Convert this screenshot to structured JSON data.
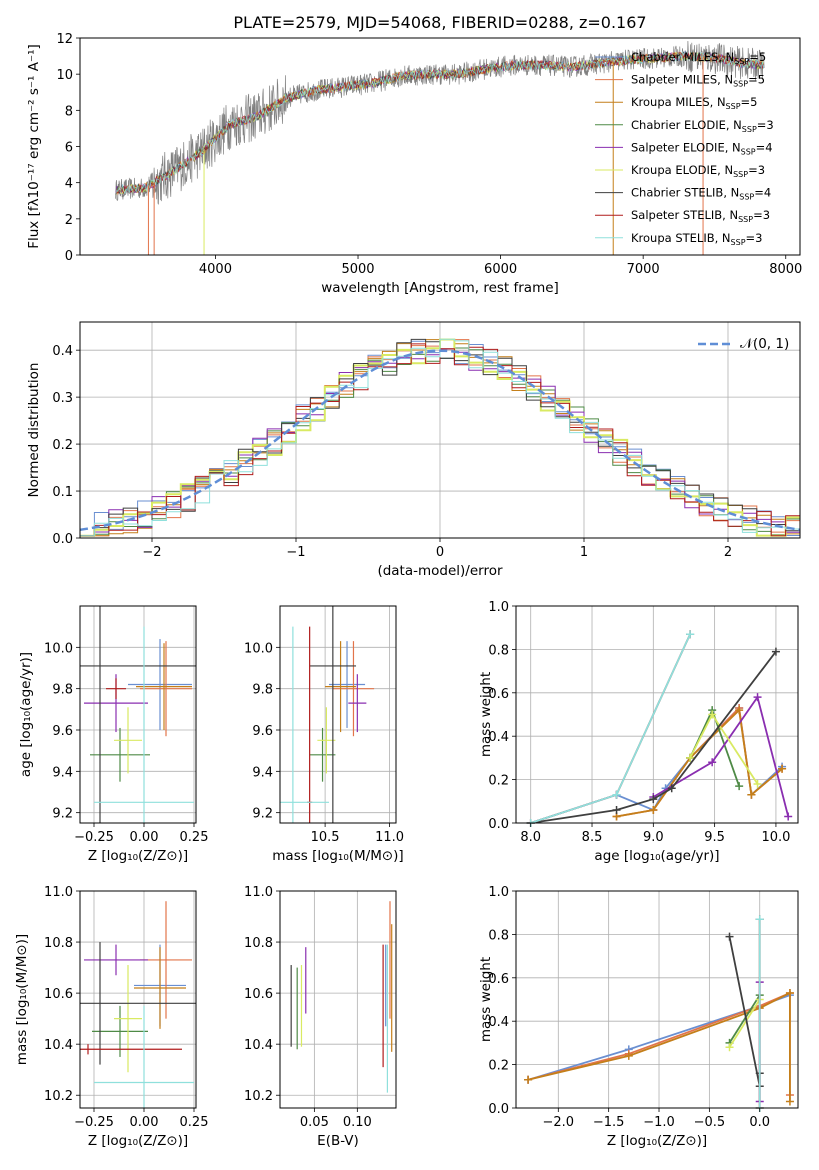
{
  "figure": {
    "title": "PLATE=2579, MJD=54068, FIBERID=0288, z=0.167"
  },
  "colors": {
    "spectrum_data": "#808080",
    "series": {
      "Chabrier MILES": "#6a8fd1",
      "Salpeter MILES": "#e2744a",
      "Kroupa MILES": "#c47f1a",
      "Chabrier ELODIE": "#4e8a46",
      "Salpeter ELODIE": "#8a2eb0",
      "Kroupa ELODIE": "#d9ea62",
      "Chabrier STELIB": "#3f3f3f",
      "Salpeter STELIB": "#b01c1c",
      "Kroupa STELIB": "#8fe0dc"
    },
    "normal_curve": "#5f8ed6",
    "grid": "#b0b0b0"
  },
  "chart_data": [
    {
      "id": "spectrum",
      "type": "line",
      "title": "PLATE=2579, MJD=54068, FIBERID=0288, z=0.167",
      "xlabel": "wavelength [Angstrom, rest frame]",
      "ylabel": "Flux [fλ10⁻¹⁷ erg cm⁻² s⁻¹ A⁻¹]",
      "xlim": [
        3050,
        8100
      ],
      "ylim": [
        0,
        12
      ],
      "xticks": [
        4000,
        5000,
        6000,
        7000,
        8000
      ],
      "yticks": [
        0,
        2,
        4,
        6,
        8,
        10,
        12
      ],
      "grid": false,
      "legend_position": "right",
      "continuum": {
        "x": [
          3300,
          3500,
          3700,
          3900,
          4100,
          4300,
          4500,
          4700,
          4900,
          5100,
          5300,
          5500,
          5700,
          5900,
          6100,
          6300,
          6500,
          6700,
          6900,
          7100,
          7300,
          7500,
          7700,
          7850
        ],
        "y": [
          3.6,
          3.7,
          4.6,
          5.7,
          7.2,
          7.7,
          8.7,
          9.1,
          9.3,
          9.5,
          9.9,
          10.0,
          10.0,
          10.3,
          10.5,
          10.5,
          10.4,
          10.6,
          10.8,
          10.9,
          11.0,
          10.9,
          10.6,
          10.5
        ]
      },
      "series": [
        {
          "name": "Chabrier MILES, N_SSP=5"
        },
        {
          "name": "Salpeter MILES, N_SSP=5"
        },
        {
          "name": "Kroupa MILES, N_SSP=5"
        },
        {
          "name": "Chabrier ELODIE, N_SSP=3"
        },
        {
          "name": "Salpeter ELODIE, N_SSP=4"
        },
        {
          "name": "Kroupa ELODIE, N_SSP=3"
        },
        {
          "name": "Chabrier STELIB, N_SSP=4"
        },
        {
          "name": "Salpeter STELIB, N_SSP=3"
        },
        {
          "name": "Kroupa STELIB, N_SSP=3"
        }
      ]
    },
    {
      "id": "residuals",
      "type": "histogram",
      "xlabel": "(data-model)/error",
      "ylabel": "Normed distribution",
      "xlim": [
        -2.5,
        2.5
      ],
      "ylim": [
        0,
        0.46
      ],
      "xticks": [
        -2,
        -1,
        0,
        1,
        2
      ],
      "yticks": [
        0.0,
        0.1,
        0.2,
        0.3,
        0.4
      ],
      "grid": true,
      "legend_position": "top-right",
      "normal_curve": {
        "label": "𝒩(0, 1)",
        "mean": 0,
        "sigma": 1
      },
      "bin_width": 0.1
    },
    {
      "id": "age-vs-Z",
      "type": "errorbar",
      "xlabel": "Z [log₁₀(Z/Z⊙)]",
      "ylabel": "age  [log₁₀(age/yr)]",
      "xlim": [
        -0.32,
        0.26
      ],
      "ylim": [
        9.15,
        10.2
      ],
      "xticks": [
        -0.25,
        0.0,
        0.25
      ],
      "yticks": [
        9.2,
        9.4,
        9.6,
        9.8,
        10.0
      ],
      "grid": true,
      "points": [
        {
          "series": "Chabrier MILES",
          "x": 0.08,
          "y": 9.82,
          "ex": 0.16,
          "ey": 0.22
        },
        {
          "series": "Salpeter MILES",
          "x": 0.11,
          "y": 9.8,
          "ex": 0.13,
          "ey": 0.23
        },
        {
          "series": "Kroupa MILES",
          "x": 0.1,
          "y": 9.81,
          "ex": 0.14,
          "ey": 0.21
        },
        {
          "series": "Chabrier ELODIE",
          "x": -0.12,
          "y": 9.48,
          "ex": 0.15,
          "ey": 0.13
        },
        {
          "series": "Salpeter ELODIE",
          "x": -0.14,
          "y": 9.73,
          "ex": 0.16,
          "ey": 0.14
        },
        {
          "series": "Kroupa ELODIE",
          "x": -0.08,
          "y": 9.55,
          "ex": 0.07,
          "ey": 0.16
        },
        {
          "series": "Chabrier STELIB",
          "x": -0.22,
          "y": 9.91,
          "ex": 0.48,
          "ey": 0.85
        },
        {
          "series": "Salpeter STELIB",
          "x": -0.14,
          "y": 9.8,
          "ex": 0.05,
          "ey": 0.05
        },
        {
          "series": "Kroupa STELIB",
          "x": -0.0,
          "y": 9.25,
          "ex": 0.25,
          "ey": 0.85
        }
      ]
    },
    {
      "id": "age-vs-mass",
      "type": "errorbar",
      "xlabel": "mass [log₁₀(M/M⊙)]",
      "ylabel": "",
      "xlim": [
        10.15,
        11.05
      ],
      "ylim": [
        9.15,
        10.2
      ],
      "xticks": [
        10.5,
        11.0
      ],
      "yticks": [
        9.2,
        9.4,
        9.6,
        9.8,
        10.0
      ],
      "grid": true,
      "points": [
        {
          "series": "Chabrier MILES",
          "x": 10.67,
          "y": 9.82,
          "ex": 0.14,
          "ey": 0.21
        },
        {
          "series": "Salpeter MILES",
          "x": 10.72,
          "y": 9.8,
          "ex": 0.16,
          "ey": 0.23
        },
        {
          "series": "Kroupa MILES",
          "x": 10.62,
          "y": 9.81,
          "ex": 0.12,
          "ey": 0.22
        },
        {
          "series": "Chabrier ELODIE",
          "x": 10.48,
          "y": 9.48,
          "ex": 0.1,
          "ey": 0.13
        },
        {
          "series": "Salpeter ELODIE",
          "x": 10.75,
          "y": 9.73,
          "ex": 0.07,
          "ey": 0.14
        },
        {
          "series": "Kroupa ELODIE",
          "x": 10.51,
          "y": 9.55,
          "ex": 0.07,
          "ey": 0.16
        },
        {
          "series": "Chabrier STELIB",
          "x": 10.56,
          "y": 9.91,
          "ex": 0.18,
          "ey": 0.85
        },
        {
          "series": "Salpeter STELIB",
          "x": 10.38,
          "y": 9.25,
          "ex": 0.02,
          "ey": 0.85
        },
        {
          "series": "Kroupa STELIB",
          "x": 10.25,
          "y": 9.25,
          "ex": 0.28,
          "ey": 0.85
        }
      ]
    },
    {
      "id": "massweight-vs-age",
      "type": "line",
      "xlabel": "age  [log₁₀(age/yr)]",
      "ylabel": "mass weight",
      "xlim": [
        7.88,
        10.18
      ],
      "ylim": [
        0,
        1.0
      ],
      "xticks": [
        8.0,
        8.5,
        9.0,
        9.5,
        10.0
      ],
      "yticks": [
        0.0,
        0.2,
        0.4,
        0.6,
        0.8,
        1.0
      ],
      "grid": true,
      "series": [
        {
          "series": "Chabrier MILES",
          "x": [
            8.0,
            8.7,
            9.0,
            9.1,
            9.3,
            9.7,
            9.8,
            10.05
          ],
          "y": [
            0.0,
            0.13,
            0.06,
            0.16,
            0.3,
            0.53,
            0.13,
            0.26
          ]
        },
        {
          "series": "Salpeter MILES",
          "x": [
            8.7,
            9.0,
            9.3,
            9.7,
            9.8,
            10.05
          ],
          "y": [
            0.03,
            0.06,
            0.3,
            0.53,
            0.13,
            0.25
          ]
        },
        {
          "series": "Kroupa MILES",
          "x": [
            8.7,
            9.0,
            9.3,
            9.7,
            9.8,
            10.05
          ],
          "y": [
            0.03,
            0.06,
            0.3,
            0.52,
            0.13,
            0.25
          ]
        },
        {
          "series": "Chabrier ELODIE",
          "x": [
            9.3,
            9.48,
            9.7
          ],
          "y": [
            0.3,
            0.52,
            0.17
          ]
        },
        {
          "series": "Salpeter ELODIE",
          "x": [
            9.0,
            9.48,
            9.85,
            10.1
          ],
          "y": [
            0.12,
            0.28,
            0.58,
            0.03
          ]
        },
        {
          "series": "Kroupa ELODIE",
          "x": [
            9.3,
            9.48,
            9.85
          ],
          "y": [
            0.3,
            0.5,
            0.18
          ]
        },
        {
          "series": "Chabrier STELIB",
          "x": [
            8.0,
            8.7,
            9.0,
            9.15,
            10.0
          ],
          "y": [
            0.0,
            0.06,
            0.11,
            0.16,
            0.79
          ]
        },
        {
          "series": "Salpeter STELIB",
          "x": [
            8.0,
            8.7,
            9.3
          ],
          "y": [
            0.0,
            0.13,
            0.87
          ]
        },
        {
          "series": "Kroupa STELIB",
          "x": [
            8.0,
            8.7,
            9.3
          ],
          "y": [
            0.0,
            0.13,
            0.87
          ]
        }
      ]
    },
    {
      "id": "mass-vs-Z",
      "type": "errorbar",
      "xlabel": "Z [log₁₀(Z/Z⊙)]",
      "ylabel": "mass [log₁₀(M/M⊙)]",
      "xlim": [
        -0.32,
        0.26
      ],
      "ylim": [
        10.15,
        11.0
      ],
      "xticks": [
        -0.25,
        0.0,
        0.25
      ],
      "yticks": [
        10.2,
        10.4,
        10.6,
        10.8,
        11.0
      ],
      "grid": true,
      "points": [
        {
          "series": "Chabrier MILES",
          "x": 0.08,
          "y": 10.63,
          "ex": 0.13,
          "ey": 0.16
        },
        {
          "series": "Salpeter MILES",
          "x": 0.11,
          "y": 10.73,
          "ex": 0.13,
          "ey": 0.23
        },
        {
          "series": "Kroupa MILES",
          "x": 0.08,
          "y": 10.62,
          "ex": 0.13,
          "ey": 0.16
        },
        {
          "series": "Chabrier ELODIE",
          "x": -0.12,
          "y": 10.45,
          "ex": 0.14,
          "ey": 0.1
        },
        {
          "series": "Salpeter ELODIE",
          "x": -0.14,
          "y": 10.73,
          "ex": 0.16,
          "ey": 0.06
        },
        {
          "series": "Kroupa ELODIE",
          "x": -0.08,
          "y": 10.5,
          "ex": 0.07,
          "ey": 0.21
        },
        {
          "series": "Chabrier STELIB",
          "x": -0.22,
          "y": 10.56,
          "ex": 0.48,
          "ey": 0.24
        },
        {
          "series": "Salpeter STELIB",
          "x": -0.28,
          "y": 10.38,
          "ex": 0.47,
          "ey": 0.02
        },
        {
          "series": "Kroupa STELIB",
          "x": -0.0,
          "y": 10.25,
          "ex": 0.25,
          "ey": 0.3
        }
      ]
    },
    {
      "id": "mass-vs-EBV",
      "type": "errorbar",
      "xlabel": "E(B-V)",
      "ylabel": "",
      "xlim": [
        0.01,
        0.145
      ],
      "ylim": [
        10.15,
        11.0
      ],
      "xticks": [
        0.05,
        0.1
      ],
      "yticks": [
        10.2,
        10.4,
        10.6,
        10.8,
        11.0
      ],
      "grid": true,
      "points": [
        {
          "series": "Chabrier MILES",
          "x": 0.133,
          "y": 10.63,
          "ex": 0.0,
          "ey": 0.16
        },
        {
          "series": "Salpeter MILES",
          "x": 0.138,
          "y": 10.73,
          "ex": 0.0,
          "ey": 0.23
        },
        {
          "series": "Kroupa MILES",
          "x": 0.14,
          "y": 10.62,
          "ex": 0.0,
          "ey": 0.25
        },
        {
          "series": "Chabrier ELODIE",
          "x": 0.03,
          "y": 10.54,
          "ex": 0.0,
          "ey": 0.16
        },
        {
          "series": "Salpeter ELODIE",
          "x": 0.04,
          "y": 10.65,
          "ex": 0.0,
          "ey": 0.13
        },
        {
          "series": "Kroupa ELODIE",
          "x": 0.035,
          "y": 10.55,
          "ex": 0.0,
          "ey": 0.16
        },
        {
          "series": "Chabrier STELIB",
          "x": 0.023,
          "y": 10.55,
          "ex": 0.0,
          "ey": 0.16
        },
        {
          "series": "Salpeter STELIB",
          "x": 0.13,
          "y": 10.55,
          "ex": 0.0,
          "ey": 0.24
        },
        {
          "series": "Kroupa STELIB",
          "x": 0.135,
          "y": 10.5,
          "ex": 0.0,
          "ey": 0.29
        }
      ]
    },
    {
      "id": "massweight-vs-Z",
      "type": "line",
      "xlabel": "Z [log₁₀(Z/Z⊙)]",
      "ylabel": "mass weight",
      "xlim": [
        -2.42,
        0.38
      ],
      "ylim": [
        0,
        1.0
      ],
      "xticks": [
        -2.0,
        -1.5,
        -1.0,
        -0.5,
        0.0
      ],
      "yticks": [
        0.0,
        0.2,
        0.4,
        0.6,
        0.8,
        1.0
      ],
      "grid": true,
      "series": [
        {
          "series": "Chabrier MILES",
          "x": [
            -2.3,
            -1.3,
            0.0,
            0.3
          ],
          "y": [
            0.13,
            0.27,
            0.47,
            0.52
          ]
        },
        {
          "series": "Salpeter MILES",
          "x": [
            -2.3,
            -1.3,
            0.0,
            0.3,
            0.3
          ],
          "y": [
            0.13,
            0.25,
            0.47,
            0.53,
            0.06
          ]
        },
        {
          "series": "Kroupa MILES",
          "x": [
            -2.3,
            -1.3,
            0.0,
            0.3,
            0.3
          ],
          "y": [
            0.13,
            0.24,
            0.46,
            0.53,
            0.03
          ]
        },
        {
          "series": "Chabrier ELODIE",
          "x": [
            -0.3,
            0.0
          ],
          "y": [
            0.3,
            0.52
          ]
        },
        {
          "series": "Salpeter ELODIE",
          "x": [
            0.0,
            0.0
          ],
          "y": [
            0.03,
            0.58
          ]
        },
        {
          "series": "Kroupa ELODIE",
          "x": [
            -0.3,
            0.0
          ],
          "y": [
            0.28,
            0.5
          ]
        },
        {
          "series": "Chabrier STELIB",
          "x": [
            -0.3,
            0.0,
            0.0
          ],
          "y": [
            0.79,
            0.1,
            0.16
          ]
        },
        {
          "series": "Salpeter STELIB",
          "x": [
            0.0,
            0.0
          ],
          "y": [
            0.0,
            0.87
          ]
        },
        {
          "series": "Kroupa STELIB",
          "x": [
            0.0,
            0.0
          ],
          "y": [
            0.0,
            0.87
          ]
        }
      ]
    }
  ]
}
